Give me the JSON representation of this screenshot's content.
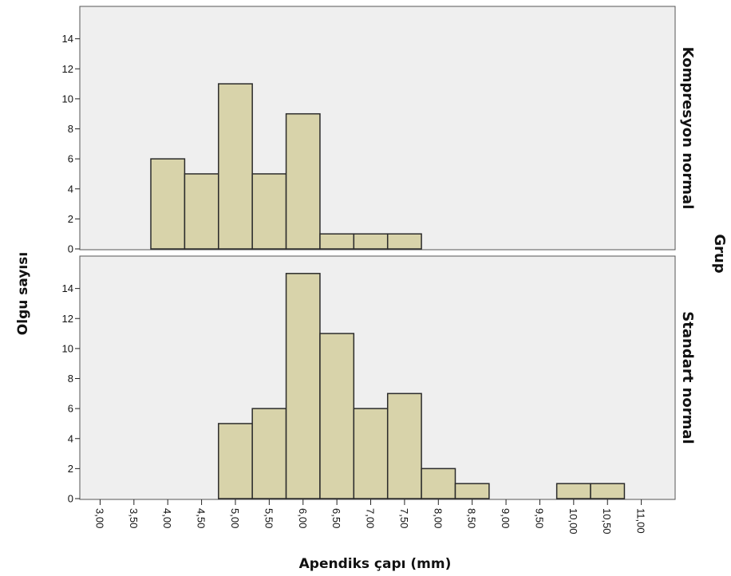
{
  "chart_data": {
    "type": "bar",
    "subtype": "histogram",
    "xlabel": "Apendiks çapı (mm)",
    "ylabel": "Olgu sayısı",
    "facet_label": "Grup",
    "bin_width": 0.5,
    "xlim": [
      2.7,
      11.5
    ],
    "x_ticks": [
      "3,00",
      "3,50",
      "4,00",
      "4,50",
      "5,00",
      "5,50",
      "6,00",
      "6,50",
      "7,00",
      "7,50",
      "8,00",
      "8,50",
      "9,00",
      "9,50",
      "10,00",
      "10,50",
      "11,00"
    ],
    "x_tick_values": [
      3,
      3.5,
      4,
      4.5,
      5,
      5.5,
      6,
      6.5,
      7,
      7.5,
      8,
      8.5,
      9,
      9.5,
      10,
      10.5,
      11
    ],
    "panels": [
      {
        "name": "Kompresyon normal",
        "ylim": [
          0,
          16
        ],
        "y_ticks": [
          0,
          2,
          4,
          6,
          8,
          10,
          12,
          14
        ],
        "bins": [
          {
            "start": 3.75,
            "count": 6
          },
          {
            "start": 4.25,
            "count": 5
          },
          {
            "start": 4.75,
            "count": 11
          },
          {
            "start": 5.25,
            "count": 5
          },
          {
            "start": 5.75,
            "count": 9
          },
          {
            "start": 6.25,
            "count": 1
          },
          {
            "start": 6.75,
            "count": 1
          },
          {
            "start": 7.25,
            "count": 1
          }
        ]
      },
      {
        "name": "Standart normal",
        "ylim": [
          0,
          16
        ],
        "y_ticks": [
          0,
          2,
          4,
          6,
          8,
          10,
          12,
          14
        ],
        "bins": [
          {
            "start": 4.75,
            "count": 5
          },
          {
            "start": 5.25,
            "count": 6
          },
          {
            "start": 5.75,
            "count": 15
          },
          {
            "start": 6.25,
            "count": 11
          },
          {
            "start": 6.75,
            "count": 6
          },
          {
            "start": 7.25,
            "count": 7
          },
          {
            "start": 7.75,
            "count": 2
          },
          {
            "start": 8.25,
            "count": 1
          },
          {
            "start": 9.75,
            "count": 1
          },
          {
            "start": 10.25,
            "count": 1
          }
        ]
      }
    ],
    "colors": {
      "bar_fill": "#d8d3aa",
      "bar_stroke": "#2b2b2b",
      "panel_background": "#efefef",
      "frame": "#555555"
    },
    "grid": false
  }
}
